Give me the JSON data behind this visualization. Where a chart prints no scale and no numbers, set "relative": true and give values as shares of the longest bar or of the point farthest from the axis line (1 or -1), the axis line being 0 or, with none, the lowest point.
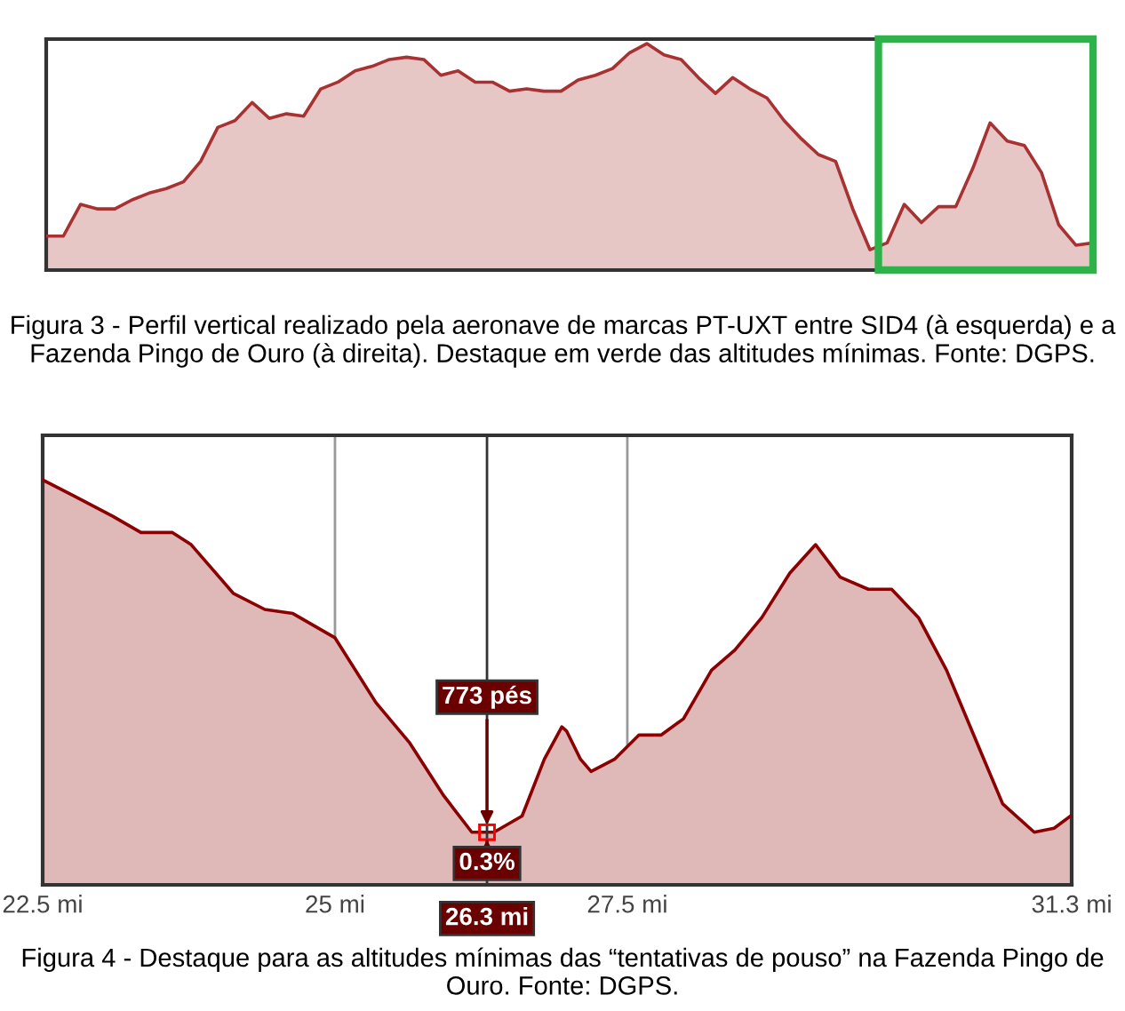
{
  "chart_data": [
    {
      "type": "area",
      "relative": true,
      "categories": [
        null,
        null,
        null,
        null,
        null,
        null,
        null,
        null,
        null,
        null,
        null,
        null,
        null,
        null,
        null,
        null,
        null,
        null,
        null,
        null,
        null,
        null,
        null,
        null,
        null,
        null,
        null,
        null,
        null,
        null,
        null,
        null,
        null,
        null,
        null,
        null,
        null,
        null,
        null,
        null,
        null,
        null,
        null,
        null,
        null,
        null,
        null,
        null,
        null,
        null,
        null,
        null,
        null,
        null,
        null,
        null,
        null,
        null,
        null,
        null,
        null,
        null
      ],
      "series": [
        {
          "color": "#a83232",
          "values": [
            0.15,
            0.15,
            0.29,
            0.27,
            0.27,
            0.31,
            0.34,
            0.36,
            0.39,
            0.48,
            0.63,
            0.66,
            0.74,
            0.67,
            0.69,
            0.68,
            0.8,
            0.83,
            0.88,
            0.9,
            0.93,
            0.94,
            0.93,
            0.86,
            0.88,
            0.83,
            0.83,
            0.79,
            0.8,
            0.79,
            0.79,
            0.84,
            0.86,
            0.89,
            0.96,
            1.0,
            0.95,
            0.93,
            0.85,
            0.78,
            0.85,
            0.8,
            0.76,
            0.66,
            0.58,
            0.51,
            0.48,
            0.27,
            0.09,
            0.12,
            0.29,
            0.21,
            0.28,
            0.28,
            0.45,
            0.65,
            0.57,
            0.55,
            0.43,
            0.2,
            0.11,
            0.12
          ]
        }
      ],
      "annotations": [
        "Figura 3 - Perfil vertical realizado pela aeronave de marcas PT-UXT entre SID4 (à esquerda) e a Fazenda Pingo de Ouro (à direita). Destaque em verde das altitudes mínimas. Fonte: DGPS."
      ]
    },
    {
      "type": "area",
      "relative": true,
      "xlim": [
        22.5,
        31.3
      ],
      "xticks": [
        {
          "value": 22.5,
          "label": "22.5 mi"
        },
        {
          "value": 25,
          "label": "25 mi"
        },
        {
          "value": 27.5,
          "label": "27.5 mi"
        },
        {
          "value": 31.3,
          "label": "31.3 mi"
        }
      ],
      "grid": "x",
      "series": [
        {
          "color": "#8b0000",
          "x": [
            22.5,
            22.77,
            23.1,
            23.34,
            23.61,
            23.77,
            24.13,
            24.4,
            24.64,
            25.0,
            25.35,
            25.64,
            25.93,
            26.17,
            26.36,
            26.6,
            26.79,
            26.94,
            26.98,
            27.1,
            27.19,
            27.39,
            27.6,
            27.79,
            27.98,
            28.22,
            28.42,
            28.65,
            28.89,
            29.11,
            29.32,
            29.56,
            29.76,
            29.99,
            30.23,
            30.52,
            30.71,
            30.98,
            31.15,
            31.29
          ],
          "values": [
            1.0,
            0.96,
            0.91,
            0.87,
            0.87,
            0.84,
            0.72,
            0.68,
            0.67,
            0.61,
            0.45,
            0.35,
            0.22,
            0.13,
            0.13,
            0.17,
            0.31,
            0.39,
            0.38,
            0.31,
            0.28,
            0.31,
            0.37,
            0.37,
            0.41,
            0.53,
            0.58,
            0.66,
            0.77,
            0.84,
            0.76,
            0.73,
            0.73,
            0.66,
            0.53,
            0.33,
            0.2,
            0.13,
            0.14,
            0.17
          ]
        }
      ],
      "ref_lines": [
        {
          "axis": "x",
          "value": 26.3,
          "label": "26.3 mi",
          "color": "#333333"
        }
      ],
      "annotations": [
        {
          "text": "773 pés",
          "x": 26.3,
          "y": 0.13
        },
        {
          "text": "0.3%",
          "x": 26.3,
          "y": 0.13
        },
        "Figura 4 - Destaque para as altitudes mínimas das “tentativas de pouso” na Fazenda Pingo de Ouro. Fonte: DGPS."
      ]
    }
  ]
}
